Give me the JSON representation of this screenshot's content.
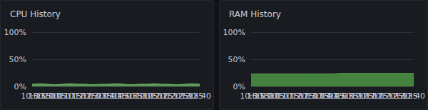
{
  "chart_data": [
    {
      "type": "area",
      "title": "CPU History",
      "categories": [
        "10:50",
        "10:55",
        "11:00",
        "11:05",
        "11:10",
        "11:15",
        "11:20",
        "11:25",
        "11:30",
        "11:35",
        "11:40",
        "11:45",
        "11:50",
        "11:55",
        "12:00",
        "12:05",
        "12:10",
        "12:15",
        "12:20",
        "12:25",
        "12:30",
        "12:35",
        "12:40"
      ],
      "values": [
        4,
        5,
        4,
        3,
        4,
        5,
        4,
        4,
        3,
        4,
        4,
        5,
        4,
        3,
        4,
        4,
        5,
        4,
        4,
        3,
        4,
        5,
        4
      ],
      "color": "#73bf69",
      "ylim": [
        0,
        100
      ],
      "yticks": [
        {
          "value": 0,
          "label": "0%"
        },
        {
          "value": 50,
          "label": "50%"
        },
        {
          "value": 100,
          "label": "100%"
        }
      ],
      "grid": true
    },
    {
      "type": "area",
      "title": "RAM History",
      "categories": [
        "10:50",
        "10:55",
        "11:00",
        "11:05",
        "11:10",
        "11:15",
        "11:20",
        "11:25",
        "11:30",
        "11:35",
        "11:40",
        "11:45",
        "11:50",
        "11:55",
        "12:00",
        "12:05",
        "12:10",
        "12:15",
        "12:20",
        "12:25",
        "12:30",
        "12:35",
        "12:40"
      ],
      "values": [
        23,
        23,
        23,
        23,
        23,
        23,
        23,
        23,
        23,
        23,
        23,
        23,
        24,
        24,
        24,
        24,
        24,
        24,
        24,
        24,
        24,
        24,
        24
      ],
      "color": "#56a64b",
      "ylim": [
        0,
        100
      ],
      "yticks": [
        {
          "value": 0,
          "label": "0%"
        },
        {
          "value": 50,
          "label": "50%"
        },
        {
          "value": 100,
          "label": "100%"
        }
      ],
      "grid": true
    }
  ]
}
